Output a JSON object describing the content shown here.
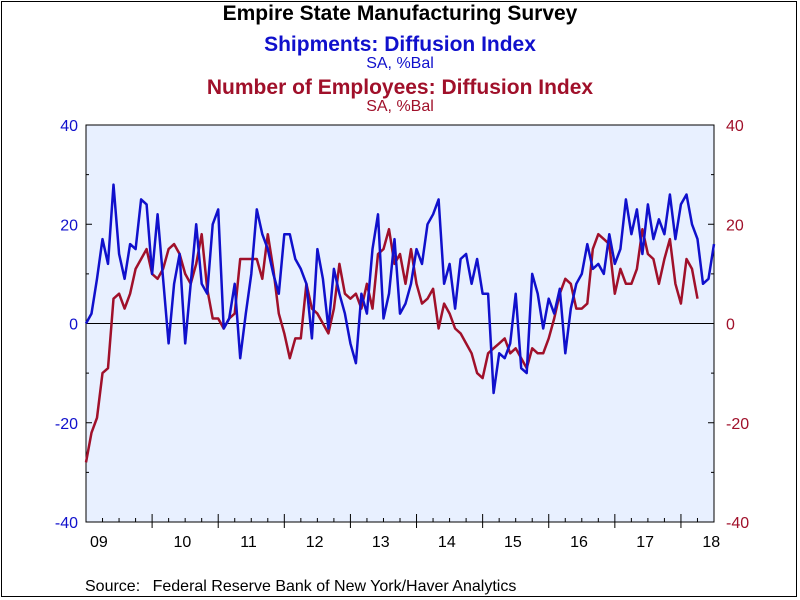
{
  "titles": {
    "main": "Empire State Manufacturing Survey",
    "series1_title": "Shipments: Diffusion Index",
    "series1_unit": "SA, %Bal",
    "series2_title": "Number of Employees: Diffusion Index",
    "series2_unit": "SA, %Bal"
  },
  "source": {
    "label": "Source:",
    "text": "Federal Reserve Bank of New York/Haver Analytics"
  },
  "colors": {
    "series1": "#1010cc",
    "series2": "#a0102a",
    "plot_background": "#e8f0ff",
    "left_axis": "#1010cc",
    "right_axis": "#a0102a"
  },
  "chart_data": {
    "type": "line",
    "x_start": "2009-01",
    "x_frequency": "monthly",
    "x_tick_labels": [
      "09",
      "10",
      "11",
      "12",
      "13",
      "14",
      "15",
      "16",
      "17",
      "18"
    ],
    "ylim": [
      -40,
      40
    ],
    "y_ticks": [
      -40,
      -20,
      0,
      20,
      40
    ],
    "y_right_ticks": [
      -40,
      -20,
      0,
      20,
      40
    ],
    "zero_line": true,
    "grid": false,
    "series": [
      {
        "name": "Shipments: Diffusion Index",
        "axis": "left",
        "values": [
          0,
          2,
          9,
          17,
          12,
          28,
          14,
          9,
          16,
          15,
          25,
          24,
          10,
          22,
          9,
          -4,
          8,
          14,
          -4,
          8,
          20,
          8,
          6,
          20,
          23,
          -1,
          1,
          8,
          -7,
          2,
          10,
          23,
          18,
          15,
          10,
          6,
          18,
          18,
          13,
          11,
          8,
          -3,
          15,
          9,
          -1,
          11,
          6,
          2,
          -4,
          -8,
          6,
          2,
          15,
          22,
          1,
          6,
          17,
          2,
          4,
          8,
          15,
          12,
          20,
          22,
          25,
          8,
          12,
          3,
          13,
          14,
          8,
          13,
          6,
          6,
          -14,
          -6,
          -7,
          -4,
          6,
          -9,
          -10,
          10,
          6,
          -1,
          5,
          2,
          7,
          -6,
          3,
          8,
          10,
          16,
          11,
          12,
          10,
          18,
          12,
          15,
          25,
          18,
          23,
          14,
          24,
          17,
          21,
          18,
          26,
          17,
          24,
          26,
          20,
          17,
          8,
          9,
          16
        ]
      },
      {
        "name": "Number of Employees: Diffusion Index",
        "axis": "right",
        "values": [
          -28,
          -22,
          -19,
          -10,
          -9,
          5,
          6,
          3,
          6,
          11,
          13,
          15,
          10,
          9,
          11,
          15,
          16,
          14,
          10,
          8,
          12,
          18,
          7,
          1,
          1,
          -1,
          1,
          2,
          13,
          13,
          13,
          13,
          9,
          18,
          11,
          2,
          -2,
          -7,
          -3,
          -3,
          8,
          3,
          2,
          0,
          -2,
          3,
          12,
          6,
          5,
          6,
          3,
          8,
          3,
          14,
          15,
          19,
          12,
          14,
          8,
          15,
          8,
          4,
          5,
          7,
          -1,
          4,
          2,
          -1,
          -2,
          -4,
          -6,
          -10,
          -11,
          -6,
          -5,
          -4,
          -3,
          -6,
          -5,
          -7,
          -9,
          -5,
          -6,
          -6,
          -3,
          1,
          6,
          9,
          8,
          3,
          3,
          4,
          15,
          18,
          17,
          16,
          6,
          11,
          8,
          8,
          11,
          19,
          14,
          13,
          8,
          13,
          17,
          8,
          4,
          13,
          11,
          5
        ]
      }
    ]
  }
}
